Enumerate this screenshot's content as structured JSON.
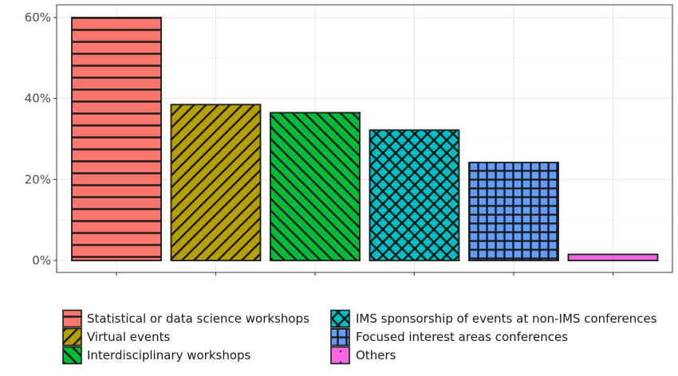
{
  "chart_data": {
    "type": "bar",
    "categories": [
      "Statistical or data science workshops",
      "Virtual events",
      "Interdisciplinary workshops",
      "IMS sponsorship of events at non-IMS conferences",
      "Focused interest areas conferences",
      "Others"
    ],
    "values": [
      60,
      38.5,
      36.5,
      32.2,
      24.2,
      1.5
    ],
    "colors": [
      "#F8766D",
      "#B79F00",
      "#00BA38",
      "#00BFC4",
      "#619CFF",
      "#F564E3"
    ],
    "patterns": [
      "horizontal-stripes",
      "diagonal-stripes-up",
      "diagonal-stripes-down",
      "crosshatch",
      "grid",
      "dots"
    ],
    "y_ticks": [
      0,
      20,
      40,
      60
    ],
    "y_tick_labels": [
      "0%",
      "20%",
      "40%",
      "60%"
    ],
    "ylim": [
      0,
      63
    ],
    "grid": true,
    "legend_position": "bottom",
    "legend_entries": [
      "Statistical or data science workshops",
      "Virtual events",
      "Interdisciplinary workshops",
      "IMS sponsorship of events at non-IMS conferences",
      "Focused interest areas conferences",
      "Others"
    ]
  }
}
